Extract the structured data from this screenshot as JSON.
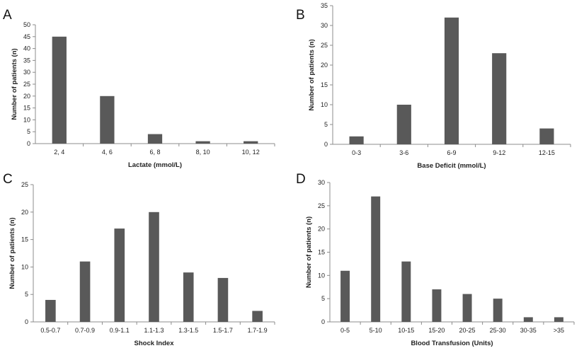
{
  "colors": {
    "bar": "#595959",
    "axis": "#8c8c8c",
    "text": "#222222"
  },
  "chart_data": [
    {
      "panel": "A",
      "type": "bar",
      "categories": [
        "2, 4",
        "4, 6",
        "6, 8",
        "8, 10",
        "10, 12"
      ],
      "values": [
        45,
        20,
        4,
        1,
        1
      ],
      "xlabel": "Lactate (mmol/L)",
      "ylabel": "Number of patients (n)",
      "ylim": [
        0,
        50
      ],
      "ystep": 5
    },
    {
      "panel": "B",
      "type": "bar",
      "categories": [
        "0-3",
        "3-6",
        "6-9",
        "9-12",
        "12-15"
      ],
      "values": [
        2,
        10,
        32,
        23,
        4
      ],
      "xlabel": "Base Deficit (mmol/L)",
      "ylabel": "Number of patients (n)",
      "ylim": [
        0,
        35
      ],
      "ystep": 5
    },
    {
      "panel": "C",
      "type": "bar",
      "categories": [
        "0.5-0.7",
        "0.7-0.9",
        "0.9-1.1",
        "1.1-1.3",
        "1.3-1.5",
        "1.5-1.7",
        "1.7-1.9"
      ],
      "values": [
        4,
        11,
        17,
        20,
        9,
        8,
        2
      ],
      "xlabel": "Shock Index",
      "ylabel": "Number of patients (n)",
      "ylim": [
        0,
        25
      ],
      "ystep": 5
    },
    {
      "panel": "D",
      "type": "bar",
      "categories": [
        "0-5",
        "5-10",
        "10-15",
        "15-20",
        "20-25",
        "25-30",
        "30-35",
        ">35"
      ],
      "values": [
        11,
        27,
        13,
        7,
        6,
        5,
        1,
        1
      ],
      "xlabel": "Blood Transfusion (Units)",
      "ylabel": "Number of patients (n)",
      "ylim": [
        0,
        30
      ],
      "ystep": 5
    }
  ]
}
